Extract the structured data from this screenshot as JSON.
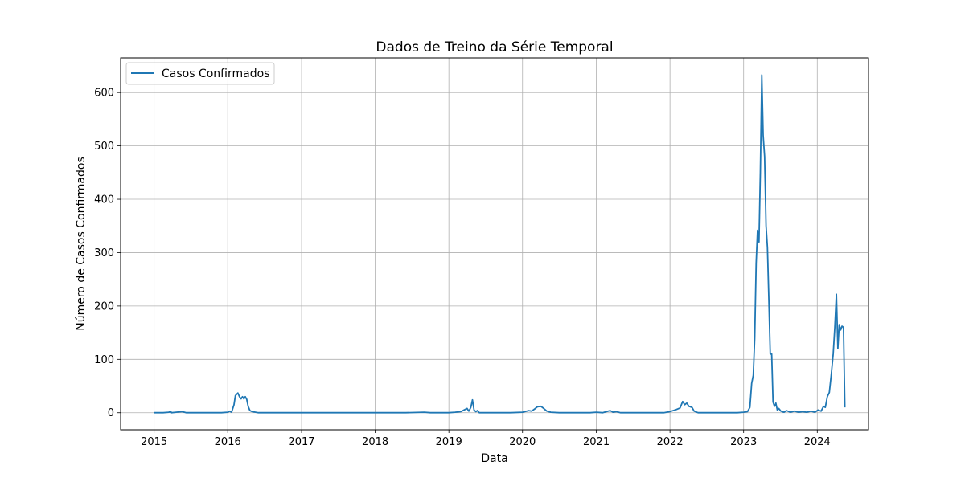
{
  "chart_data": {
    "type": "line",
    "title": "Dados de Treino da Série Temporal",
    "xlabel": "Data",
    "ylabel": "Número de Casos Confirmados",
    "xlim": [
      "2014-07-19",
      "2024-09-11"
    ],
    "ylim": [
      -32,
      665
    ],
    "x_ticks": [
      "2015",
      "2016",
      "2017",
      "2018",
      "2019",
      "2020",
      "2021",
      "2022",
      "2023",
      "2024"
    ],
    "y_ticks": [
      0,
      100,
      200,
      300,
      400,
      500,
      600
    ],
    "grid": true,
    "legend_position": "top-left",
    "color": "#1f77b4",
    "series": [
      {
        "name": "Casos Confirmados",
        "points": [
          [
            "2015-01-01",
            0
          ],
          [
            "2015-02-15",
            0
          ],
          [
            "2015-03-15",
            1
          ],
          [
            "2015-03-22",
            3
          ],
          [
            "2015-03-29",
            0
          ],
          [
            "2015-04-20",
            1
          ],
          [
            "2015-05-20",
            2
          ],
          [
            "2015-06-10",
            0
          ],
          [
            "2015-08-01",
            0
          ],
          [
            "2015-10-01",
            0
          ],
          [
            "2015-12-01",
            0
          ],
          [
            "2016-01-01",
            1
          ],
          [
            "2016-01-10",
            3
          ],
          [
            "2016-01-20",
            1
          ],
          [
            "2016-02-01",
            15
          ],
          [
            "2016-02-08",
            32
          ],
          [
            "2016-02-20",
            37
          ],
          [
            "2016-02-28",
            30
          ],
          [
            "2016-03-07",
            26
          ],
          [
            "2016-03-14",
            30
          ],
          [
            "2016-03-21",
            26
          ],
          [
            "2016-03-28",
            30
          ],
          [
            "2016-04-04",
            25
          ],
          [
            "2016-04-11",
            12
          ],
          [
            "2016-04-20",
            4
          ],
          [
            "2016-05-01",
            2
          ],
          [
            "2016-06-01",
            0
          ],
          [
            "2016-10-01",
            0
          ],
          [
            "2017-06-01",
            0
          ],
          [
            "2018-01-01",
            0
          ],
          [
            "2018-06-01",
            0
          ],
          [
            "2018-09-01",
            1
          ],
          [
            "2018-10-01",
            0
          ],
          [
            "2019-01-01",
            0
          ],
          [
            "2019-02-01",
            1
          ],
          [
            "2019-03-01",
            2
          ],
          [
            "2019-04-01",
            8
          ],
          [
            "2019-04-10",
            3
          ],
          [
            "2019-04-20",
            10
          ],
          [
            "2019-04-28",
            24
          ],
          [
            "2019-05-06",
            5
          ],
          [
            "2019-05-15",
            2
          ],
          [
            "2019-05-22",
            4
          ],
          [
            "2019-06-01",
            0
          ],
          [
            "2019-08-01",
            0
          ],
          [
            "2019-11-01",
            0
          ],
          [
            "2020-01-01",
            1
          ],
          [
            "2020-02-01",
            4
          ],
          [
            "2020-02-15",
            3
          ],
          [
            "2020-03-01",
            7
          ],
          [
            "2020-03-15",
            11
          ],
          [
            "2020-04-01",
            12
          ],
          [
            "2020-04-15",
            8
          ],
          [
            "2020-05-01",
            3
          ],
          [
            "2020-05-20",
            1
          ],
          [
            "2020-07-01",
            0
          ],
          [
            "2020-10-01",
            0
          ],
          [
            "2020-12-01",
            0
          ],
          [
            "2021-01-01",
            1
          ],
          [
            "2021-02-01",
            0
          ],
          [
            "2021-02-20",
            2
          ],
          [
            "2021-03-10",
            4
          ],
          [
            "2021-03-25",
            1
          ],
          [
            "2021-04-10",
            2
          ],
          [
            "2021-05-01",
            0
          ],
          [
            "2021-08-01",
            0
          ],
          [
            "2021-12-01",
            0
          ],
          [
            "2022-01-01",
            2
          ],
          [
            "2022-02-01",
            6
          ],
          [
            "2022-02-20",
            9
          ],
          [
            "2022-03-05",
            21
          ],
          [
            "2022-03-15",
            15
          ],
          [
            "2022-03-25",
            18
          ],
          [
            "2022-04-05",
            12
          ],
          [
            "2022-04-20",
            10
          ],
          [
            "2022-05-01",
            3
          ],
          [
            "2022-05-20",
            0
          ],
          [
            "2022-08-01",
            0
          ],
          [
            "2022-12-01",
            0
          ],
          [
            "2023-01-01",
            1
          ],
          [
            "2023-01-20",
            2
          ],
          [
            "2023-02-01",
            10
          ],
          [
            "2023-02-10",
            55
          ],
          [
            "2023-02-18",
            70
          ],
          [
            "2023-02-25",
            140
          ],
          [
            "2023-03-04",
            280
          ],
          [
            "2023-03-11",
            342
          ],
          [
            "2023-03-18",
            320
          ],
          [
            "2023-03-25",
            450
          ],
          [
            "2023-04-01",
            633
          ],
          [
            "2023-04-08",
            520
          ],
          [
            "2023-04-15",
            480
          ],
          [
            "2023-04-22",
            350
          ],
          [
            "2023-04-29",
            310
          ],
          [
            "2023-05-06",
            210
          ],
          [
            "2023-05-13",
            110
          ],
          [
            "2023-05-20",
            110
          ],
          [
            "2023-05-27",
            20
          ],
          [
            "2023-06-03",
            12
          ],
          [
            "2023-06-10",
            18
          ],
          [
            "2023-06-17",
            5
          ],
          [
            "2023-06-24",
            8
          ],
          [
            "2023-07-05",
            3
          ],
          [
            "2023-07-20",
            1
          ],
          [
            "2023-08-01",
            4
          ],
          [
            "2023-08-20",
            1
          ],
          [
            "2023-09-10",
            3
          ],
          [
            "2023-10-01",
            1
          ],
          [
            "2023-10-20",
            2
          ],
          [
            "2023-11-10",
            1
          ],
          [
            "2023-12-01",
            3
          ],
          [
            "2023-12-20",
            1
          ],
          [
            "2024-01-05",
            5
          ],
          [
            "2024-01-20",
            3
          ],
          [
            "2024-02-01",
            12
          ],
          [
            "2024-02-10",
            10
          ],
          [
            "2024-02-20",
            30
          ],
          [
            "2024-03-01",
            38
          ],
          [
            "2024-03-10",
            70
          ],
          [
            "2024-03-20",
            110
          ],
          [
            "2024-03-28",
            160
          ],
          [
            "2024-04-05",
            222
          ],
          [
            "2024-04-12",
            120
          ],
          [
            "2024-04-19",
            165
          ],
          [
            "2024-04-26",
            155
          ],
          [
            "2024-05-03",
            162
          ],
          [
            "2024-05-10",
            160
          ],
          [
            "2024-05-17",
            10
          ]
        ]
      }
    ]
  }
}
